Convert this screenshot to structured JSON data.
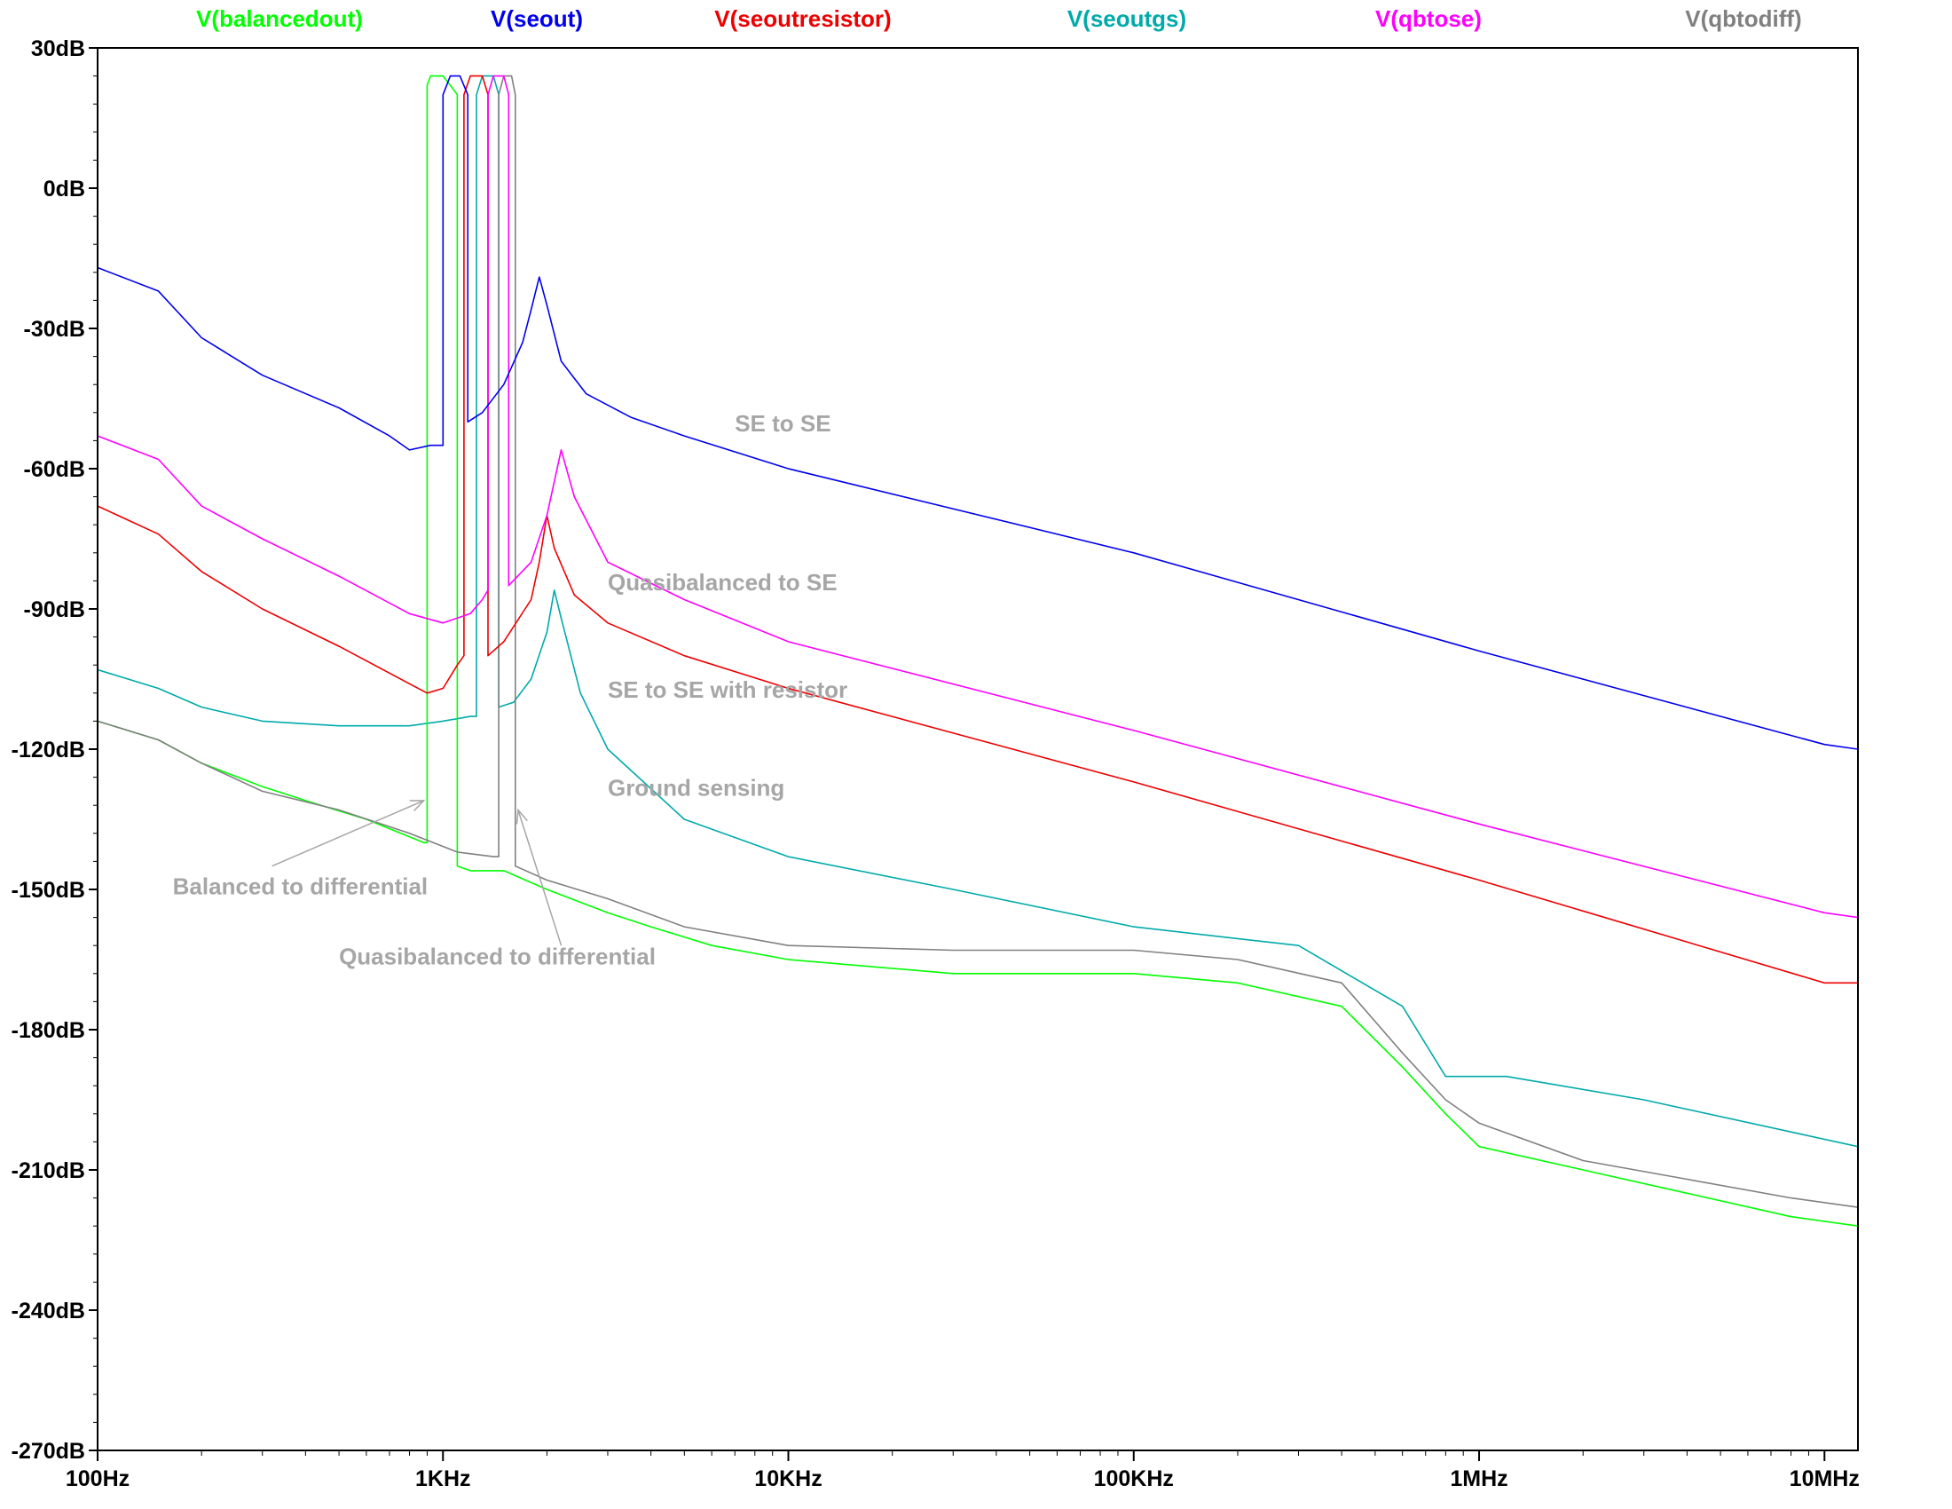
{
  "chart_data": {
    "type": "line",
    "title": "",
    "xlabel": "",
    "ylabel": "",
    "x_scale": "log",
    "xlim_hz": [
      100,
      12500000
    ],
    "ylim_db": [
      -270,
      30
    ],
    "x_tick_values": [
      100,
      1000,
      10000,
      100000,
      1000000,
      10000000
    ],
    "x_tick_labels": [
      "100Hz",
      "1KHz",
      "10KHz",
      "100KHz",
      "1MHz",
      "10MHz"
    ],
    "y_tick_values": [
      30,
      0,
      -30,
      -60,
      -90,
      -120,
      -150,
      -180,
      -210,
      -240,
      -270
    ],
    "y_tick_labels": [
      "30dB",
      "0dB",
      "-30dB",
      "-60dB",
      "-90dB",
      "-120dB",
      "-150dB",
      "-180dB",
      "-210dB",
      "-240dB",
      "-270dB"
    ],
    "grid": false,
    "legend_position": "top",
    "series": [
      {
        "name": "V(balancedout)",
        "color": "#00ff00",
        "points": [
          [
            100,
            -114
          ],
          [
            150,
            -118
          ],
          [
            200,
            -123
          ],
          [
            300,
            -128
          ],
          [
            400,
            -131
          ],
          [
            600,
            -135
          ],
          [
            880,
            -140
          ],
          [
            900,
            -140
          ],
          [
            900,
            22
          ],
          [
            920,
            24
          ],
          [
            1000,
            24
          ],
          [
            1050,
            22
          ],
          [
            1100,
            20
          ],
          [
            1100,
            -145
          ],
          [
            1200,
            -146
          ],
          [
            1500,
            -146
          ],
          [
            2000,
            -150
          ],
          [
            3000,
            -155
          ],
          [
            4000,
            -158
          ],
          [
            6000,
            -162
          ],
          [
            10000,
            -165
          ],
          [
            30000,
            -168
          ],
          [
            100000,
            -168
          ],
          [
            200000,
            -170
          ],
          [
            400000,
            -175
          ],
          [
            600000,
            -188
          ],
          [
            800000,
            -198
          ],
          [
            1000000,
            -205
          ],
          [
            2000000,
            -210
          ],
          [
            4000000,
            -215
          ],
          [
            8000000,
            -220
          ],
          [
            12500000,
            -222
          ]
        ]
      },
      {
        "name": "V(seout)",
        "color": "#0000ee",
        "points": [
          [
            100,
            -17
          ],
          [
            150,
            -22
          ],
          [
            200,
            -32
          ],
          [
            300,
            -40
          ],
          [
            500,
            -47
          ],
          [
            700,
            -53
          ],
          [
            800,
            -56
          ],
          [
            920,
            -55
          ],
          [
            1000,
            -55
          ],
          [
            1000,
            20
          ],
          [
            1050,
            24
          ],
          [
            1120,
            24
          ],
          [
            1180,
            20
          ],
          [
            1180,
            -50
          ],
          [
            1300,
            -48
          ],
          [
            1500,
            -42
          ],
          [
            1700,
            -33
          ],
          [
            1800,
            -26
          ],
          [
            1900,
            -19
          ],
          [
            2000,
            -25
          ],
          [
            2200,
            -37
          ],
          [
            2600,
            -44
          ],
          [
            3500,
            -49
          ],
          [
            5000,
            -53
          ],
          [
            10000,
            -60
          ],
          [
            100000,
            -78
          ],
          [
            1000000,
            -99
          ],
          [
            10000000,
            -119
          ],
          [
            12500000,
            -120
          ]
        ]
      },
      {
        "name": "V(seoutresistor)",
        "color": "#ee0000",
        "points": [
          [
            100,
            -68
          ],
          [
            150,
            -74
          ],
          [
            200,
            -82
          ],
          [
            300,
            -90
          ],
          [
            500,
            -98
          ],
          [
            800,
            -106
          ],
          [
            900,
            -108
          ],
          [
            1000,
            -107
          ],
          [
            1100,
            -102
          ],
          [
            1150,
            -100
          ],
          [
            1150,
            20
          ],
          [
            1200,
            24
          ],
          [
            1300,
            24
          ],
          [
            1350,
            20
          ],
          [
            1350,
            -100
          ],
          [
            1500,
            -97
          ],
          [
            1800,
            -88
          ],
          [
            1900,
            -80
          ],
          [
            2000,
            -70
          ],
          [
            2100,
            -77
          ],
          [
            2400,
            -87
          ],
          [
            3000,
            -93
          ],
          [
            5000,
            -100
          ],
          [
            10000,
            -107
          ],
          [
            100000,
            -127
          ],
          [
            1000000,
            -148
          ],
          [
            10000000,
            -170
          ],
          [
            12500000,
            -170
          ]
        ]
      },
      {
        "name": "V(seoutgs)",
        "color": "#00aaaa",
        "points": [
          [
            100,
            -103
          ],
          [
            150,
            -107
          ],
          [
            200,
            -111
          ],
          [
            300,
            -114
          ],
          [
            500,
            -115
          ],
          [
            800,
            -115
          ],
          [
            1000,
            -114
          ],
          [
            1200,
            -113
          ],
          [
            1250,
            -113
          ],
          [
            1250,
            20
          ],
          [
            1300,
            24
          ],
          [
            1400,
            24
          ],
          [
            1450,
            20
          ],
          [
            1450,
            -111
          ],
          [
            1600,
            -110
          ],
          [
            1800,
            -105
          ],
          [
            2000,
            -95
          ],
          [
            2100,
            -86
          ],
          [
            2200,
            -92
          ],
          [
            2500,
            -108
          ],
          [
            3000,
            -120
          ],
          [
            5000,
            -135
          ],
          [
            10000,
            -143
          ],
          [
            30000,
            -150
          ],
          [
            100000,
            -158
          ],
          [
            300000,
            -162
          ],
          [
            600000,
            -175
          ],
          [
            800000,
            -190
          ],
          [
            1200000,
            -190
          ],
          [
            3000000,
            -195
          ],
          [
            12500000,
            -205
          ]
        ]
      },
      {
        "name": "V(qbtose)",
        "color": "#ff00ff",
        "points": [
          [
            100,
            -53
          ],
          [
            150,
            -58
          ],
          [
            200,
            -68
          ],
          [
            300,
            -75
          ],
          [
            500,
            -83
          ],
          [
            800,
            -91
          ],
          [
            1000,
            -93
          ],
          [
            1200,
            -91
          ],
          [
            1300,
            -88
          ],
          [
            1350,
            -86
          ],
          [
            1350,
            20
          ],
          [
            1400,
            24
          ],
          [
            1500,
            24
          ],
          [
            1550,
            20
          ],
          [
            1550,
            -85
          ],
          [
            1800,
            -80
          ],
          [
            2000,
            -70
          ],
          [
            2200,
            -56
          ],
          [
            2400,
            -66
          ],
          [
            3000,
            -80
          ],
          [
            5000,
            -88
          ],
          [
            10000,
            -97
          ],
          [
            100000,
            -116
          ],
          [
            1000000,
            -136
          ],
          [
            10000000,
            -155
          ],
          [
            12500000,
            -156
          ]
        ]
      },
      {
        "name": "V(qbtodiff)",
        "color": "#808080",
        "points": [
          [
            100,
            -114
          ],
          [
            150,
            -118
          ],
          [
            200,
            -123
          ],
          [
            300,
            -129
          ],
          [
            500,
            -133
          ],
          [
            800,
            -138
          ],
          [
            1100,
            -142
          ],
          [
            1400,
            -143
          ],
          [
            1450,
            -143
          ],
          [
            1450,
            20
          ],
          [
            1500,
            24
          ],
          [
            1580,
            24
          ],
          [
            1620,
            20
          ],
          [
            1620,
            -145
          ],
          [
            2000,
            -148
          ],
          [
            3000,
            -152
          ],
          [
            5000,
            -158
          ],
          [
            10000,
            -162
          ],
          [
            30000,
            -163
          ],
          [
            100000,
            -163
          ],
          [
            200000,
            -165
          ],
          [
            400000,
            -170
          ],
          [
            600000,
            -185
          ],
          [
            800000,
            -195
          ],
          [
            1000000,
            -200
          ],
          [
            2000000,
            -208
          ],
          [
            4000000,
            -212
          ],
          [
            8000000,
            -216
          ],
          [
            12500000,
            -218
          ]
        ]
      }
    ],
    "annotations": [
      {
        "text": "SE to SE",
        "x": 7000,
        "y": -52
      },
      {
        "text": "Quasibalanced to SE",
        "x": 3000,
        "y": -86
      },
      {
        "text": "SE to SE with resistor",
        "x": 3000,
        "y": -109
      },
      {
        "text": "Ground sensing",
        "x": 3000,
        "y": -130
      },
      {
        "text": "Balanced to differential",
        "x": 165,
        "y": -151
      },
      {
        "text": "Quasibalanced to differential",
        "x": 500,
        "y": -166
      }
    ]
  }
}
